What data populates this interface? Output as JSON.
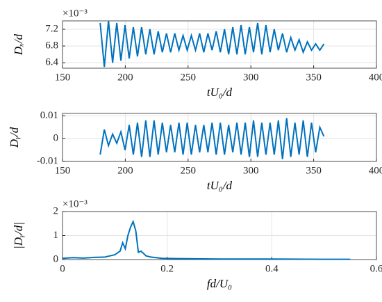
{
  "chart_data": [
    {
      "type": "line",
      "ylabel": "Dₓ/d",
      "xlabel": "tU₀/d",
      "multiplier": "×10⁻³",
      "color": "#0072BD",
      "grid": true,
      "xlim": [
        150,
        400
      ],
      "xticks": [
        150,
        200,
        250,
        300,
        350,
        400
      ],
      "ylim": [
        6.27,
        7.4
      ],
      "yticks": [
        6.4,
        6.8,
        7.2
      ],
      "x": [
        180,
        183.3,
        186.6,
        189.9,
        193.2,
        196.5,
        199.8,
        203.1,
        206.4,
        209.7,
        213,
        216.3,
        219.6,
        222.9,
        226.2,
        229.5,
        232.8,
        236.1,
        239.4,
        242.7,
        246,
        249.3,
        252.6,
        255.9,
        259.2,
        262.5,
        265.8,
        269.1,
        272.4,
        275.7,
        279,
        282.3,
        285.6,
        288.9,
        292.2,
        295.5,
        298.8,
        302.1,
        305.4,
        308.7,
        312,
        315.3,
        318.6,
        321.9,
        325.2,
        328.5,
        331.8,
        335.1,
        338.4,
        341.7,
        345,
        348.3,
        351.6,
        354.9,
        358.2
      ],
      "values": [
        7.35,
        6.3,
        7.4,
        6.4,
        7.35,
        6.45,
        7.3,
        6.5,
        7.25,
        6.55,
        7.25,
        6.6,
        7.2,
        6.6,
        7.15,
        6.65,
        7.1,
        6.65,
        7.1,
        6.7,
        7.05,
        6.7,
        7.05,
        6.7,
        7.1,
        6.65,
        7.1,
        6.7,
        7.15,
        6.65,
        7.2,
        6.6,
        7.25,
        6.6,
        7.3,
        6.6,
        7.25,
        6.65,
        7.35,
        6.6,
        7.3,
        6.65,
        7.2,
        6.7,
        7.1,
        6.65,
        7.0,
        6.7,
        6.95,
        6.65,
        6.9,
        6.7,
        6.85,
        6.7,
        6.85
      ]
    },
    {
      "type": "line",
      "ylabel": "Dᵧ/d",
      "xlabel": "tU₀/d",
      "color": "#0072BD",
      "grid": true,
      "xlim": [
        150,
        400
      ],
      "xticks": [
        150,
        200,
        250,
        300,
        350,
        400
      ],
      "ylim": [
        -0.01,
        0.0111
      ],
      "yticks": [
        -0.01,
        0,
        0.01
      ],
      "x": [
        180,
        183.3,
        186.6,
        189.9,
        193.2,
        196.5,
        199.8,
        203.1,
        206.4,
        209.7,
        213,
        216.3,
        219.6,
        222.9,
        226.2,
        229.5,
        232.8,
        236.1,
        239.4,
        242.7,
        246,
        249.3,
        252.6,
        255.9,
        259.2,
        262.5,
        265.8,
        269.1,
        272.4,
        275.7,
        279,
        282.3,
        285.6,
        288.9,
        292.2,
        295.5,
        298.8,
        302.1,
        305.4,
        308.7,
        312,
        315.3,
        318.6,
        321.9,
        325.2,
        328.5,
        331.8,
        335.1,
        338.4,
        341.7,
        345,
        348.3,
        351.6,
        354.9,
        358.2
      ],
      "values": [
        -0.007,
        0.004,
        -0.003,
        0.002,
        -0.002,
        0.003,
        -0.005,
        0.006,
        -0.007,
        0.007,
        -0.008,
        0.008,
        -0.008,
        0.008,
        -0.007,
        0.007,
        -0.006,
        0.006,
        -0.006,
        0.007,
        -0.007,
        0.007,
        -0.007,
        0.006,
        -0.006,
        0.006,
        -0.006,
        0.007,
        -0.007,
        0.007,
        -0.007,
        0.006,
        -0.006,
        0.007,
        -0.007,
        0.007,
        -0.008,
        0.008,
        -0.008,
        0.007,
        -0.007,
        0.007,
        -0.007,
        0.008,
        -0.009,
        0.009,
        -0.008,
        0.007,
        -0.007,
        0.008,
        -0.008,
        0.007,
        -0.006,
        0.005,
        0.001
      ]
    },
    {
      "type": "line",
      "ylabel": "|Dᵧ/d|",
      "xlabel": "fd/U₀",
      "multiplier": "×10⁻³",
      "color": "#0072BD",
      "grid": true,
      "xlim": [
        0,
        0.6
      ],
      "xticks": [
        0,
        0.2,
        0.4,
        0.6
      ],
      "ylim": [
        0,
        2
      ],
      "yticks": [
        0,
        1,
        2
      ],
      "x": [
        0,
        0.02,
        0.04,
        0.06,
        0.08,
        0.09,
        0.1,
        0.11,
        0.115,
        0.12,
        0.125,
        0.13,
        0.135,
        0.14,
        0.145,
        0.15,
        0.155,
        0.16,
        0.17,
        0.19,
        0.22,
        0.3,
        0.4,
        0.5,
        0.55
      ],
      "values": [
        0.05,
        0.08,
        0.06,
        0.09,
        0.1,
        0.15,
        0.2,
        0.35,
        0.7,
        0.45,
        1.0,
        1.35,
        1.58,
        1.2,
        0.3,
        0.35,
        0.25,
        0.15,
        0.1,
        0.05,
        0.04,
        0.02,
        0.02,
        0.01,
        0.01
      ]
    }
  ]
}
